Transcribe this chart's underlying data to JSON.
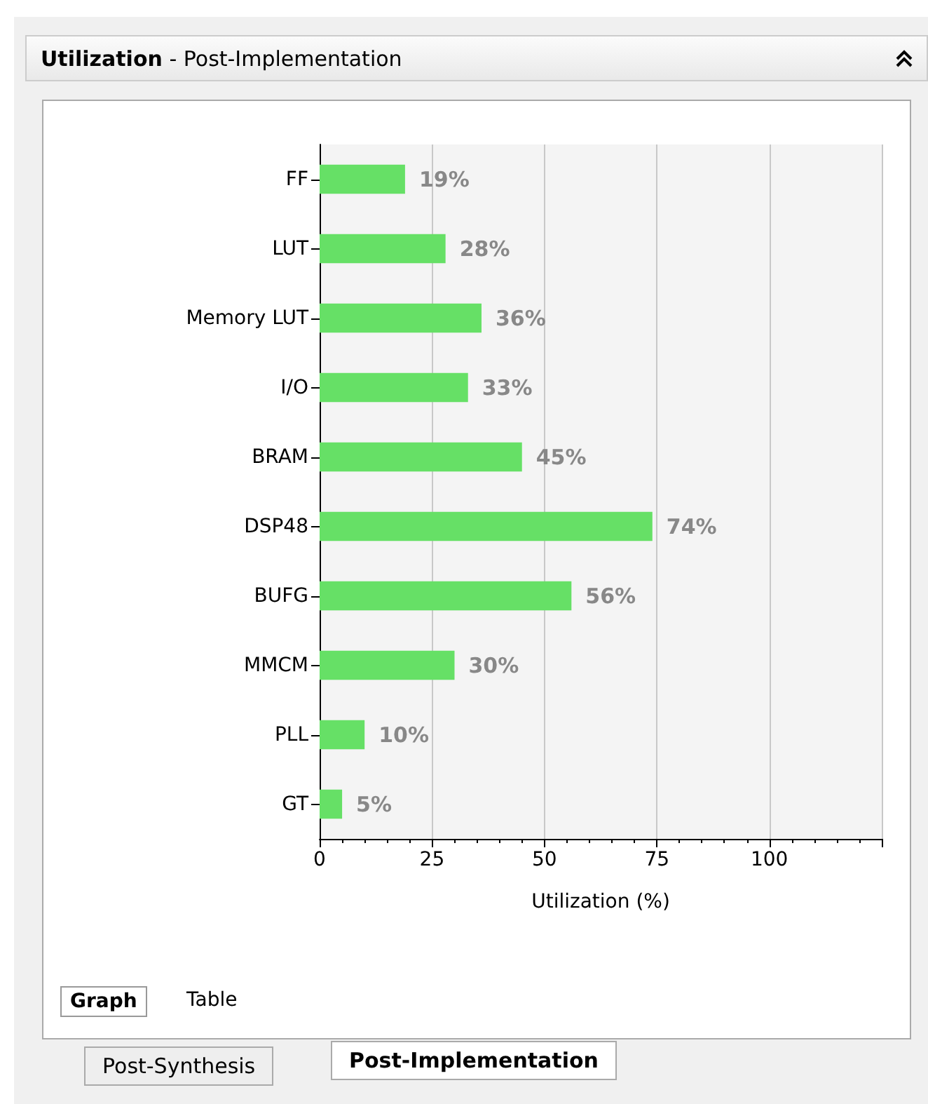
{
  "chart_data": {
    "type": "bar",
    "orientation": "horizontal",
    "title": "Utilization",
    "subtitle": "- Post-Implementation",
    "xlabel": "Utilization (%)",
    "categories": [
      "FF",
      "LUT",
      "Memory LUT",
      "I/O",
      "BRAM",
      "DSP48",
      "BUFG",
      "MMCM",
      "PLL",
      "GT"
    ],
    "values": [
      19,
      28,
      36,
      33,
      45,
      74,
      56,
      30,
      10,
      5
    ],
    "value_labels": [
      "19%",
      "28%",
      "36%",
      "33%",
      "45%",
      "74%",
      "56%",
      "30%",
      "10%",
      "5%"
    ],
    "color": "#66e066",
    "xlim": [
      0,
      125
    ],
    "xticks": [
      0,
      25,
      50,
      75,
      100,
      {
        "value": 125,
        "label": null
      }
    ],
    "grid": "x",
    "annotations": [
      "Graph",
      "Table",
      "Post-Synthesis",
      "Post-Implementation"
    ]
  }
}
